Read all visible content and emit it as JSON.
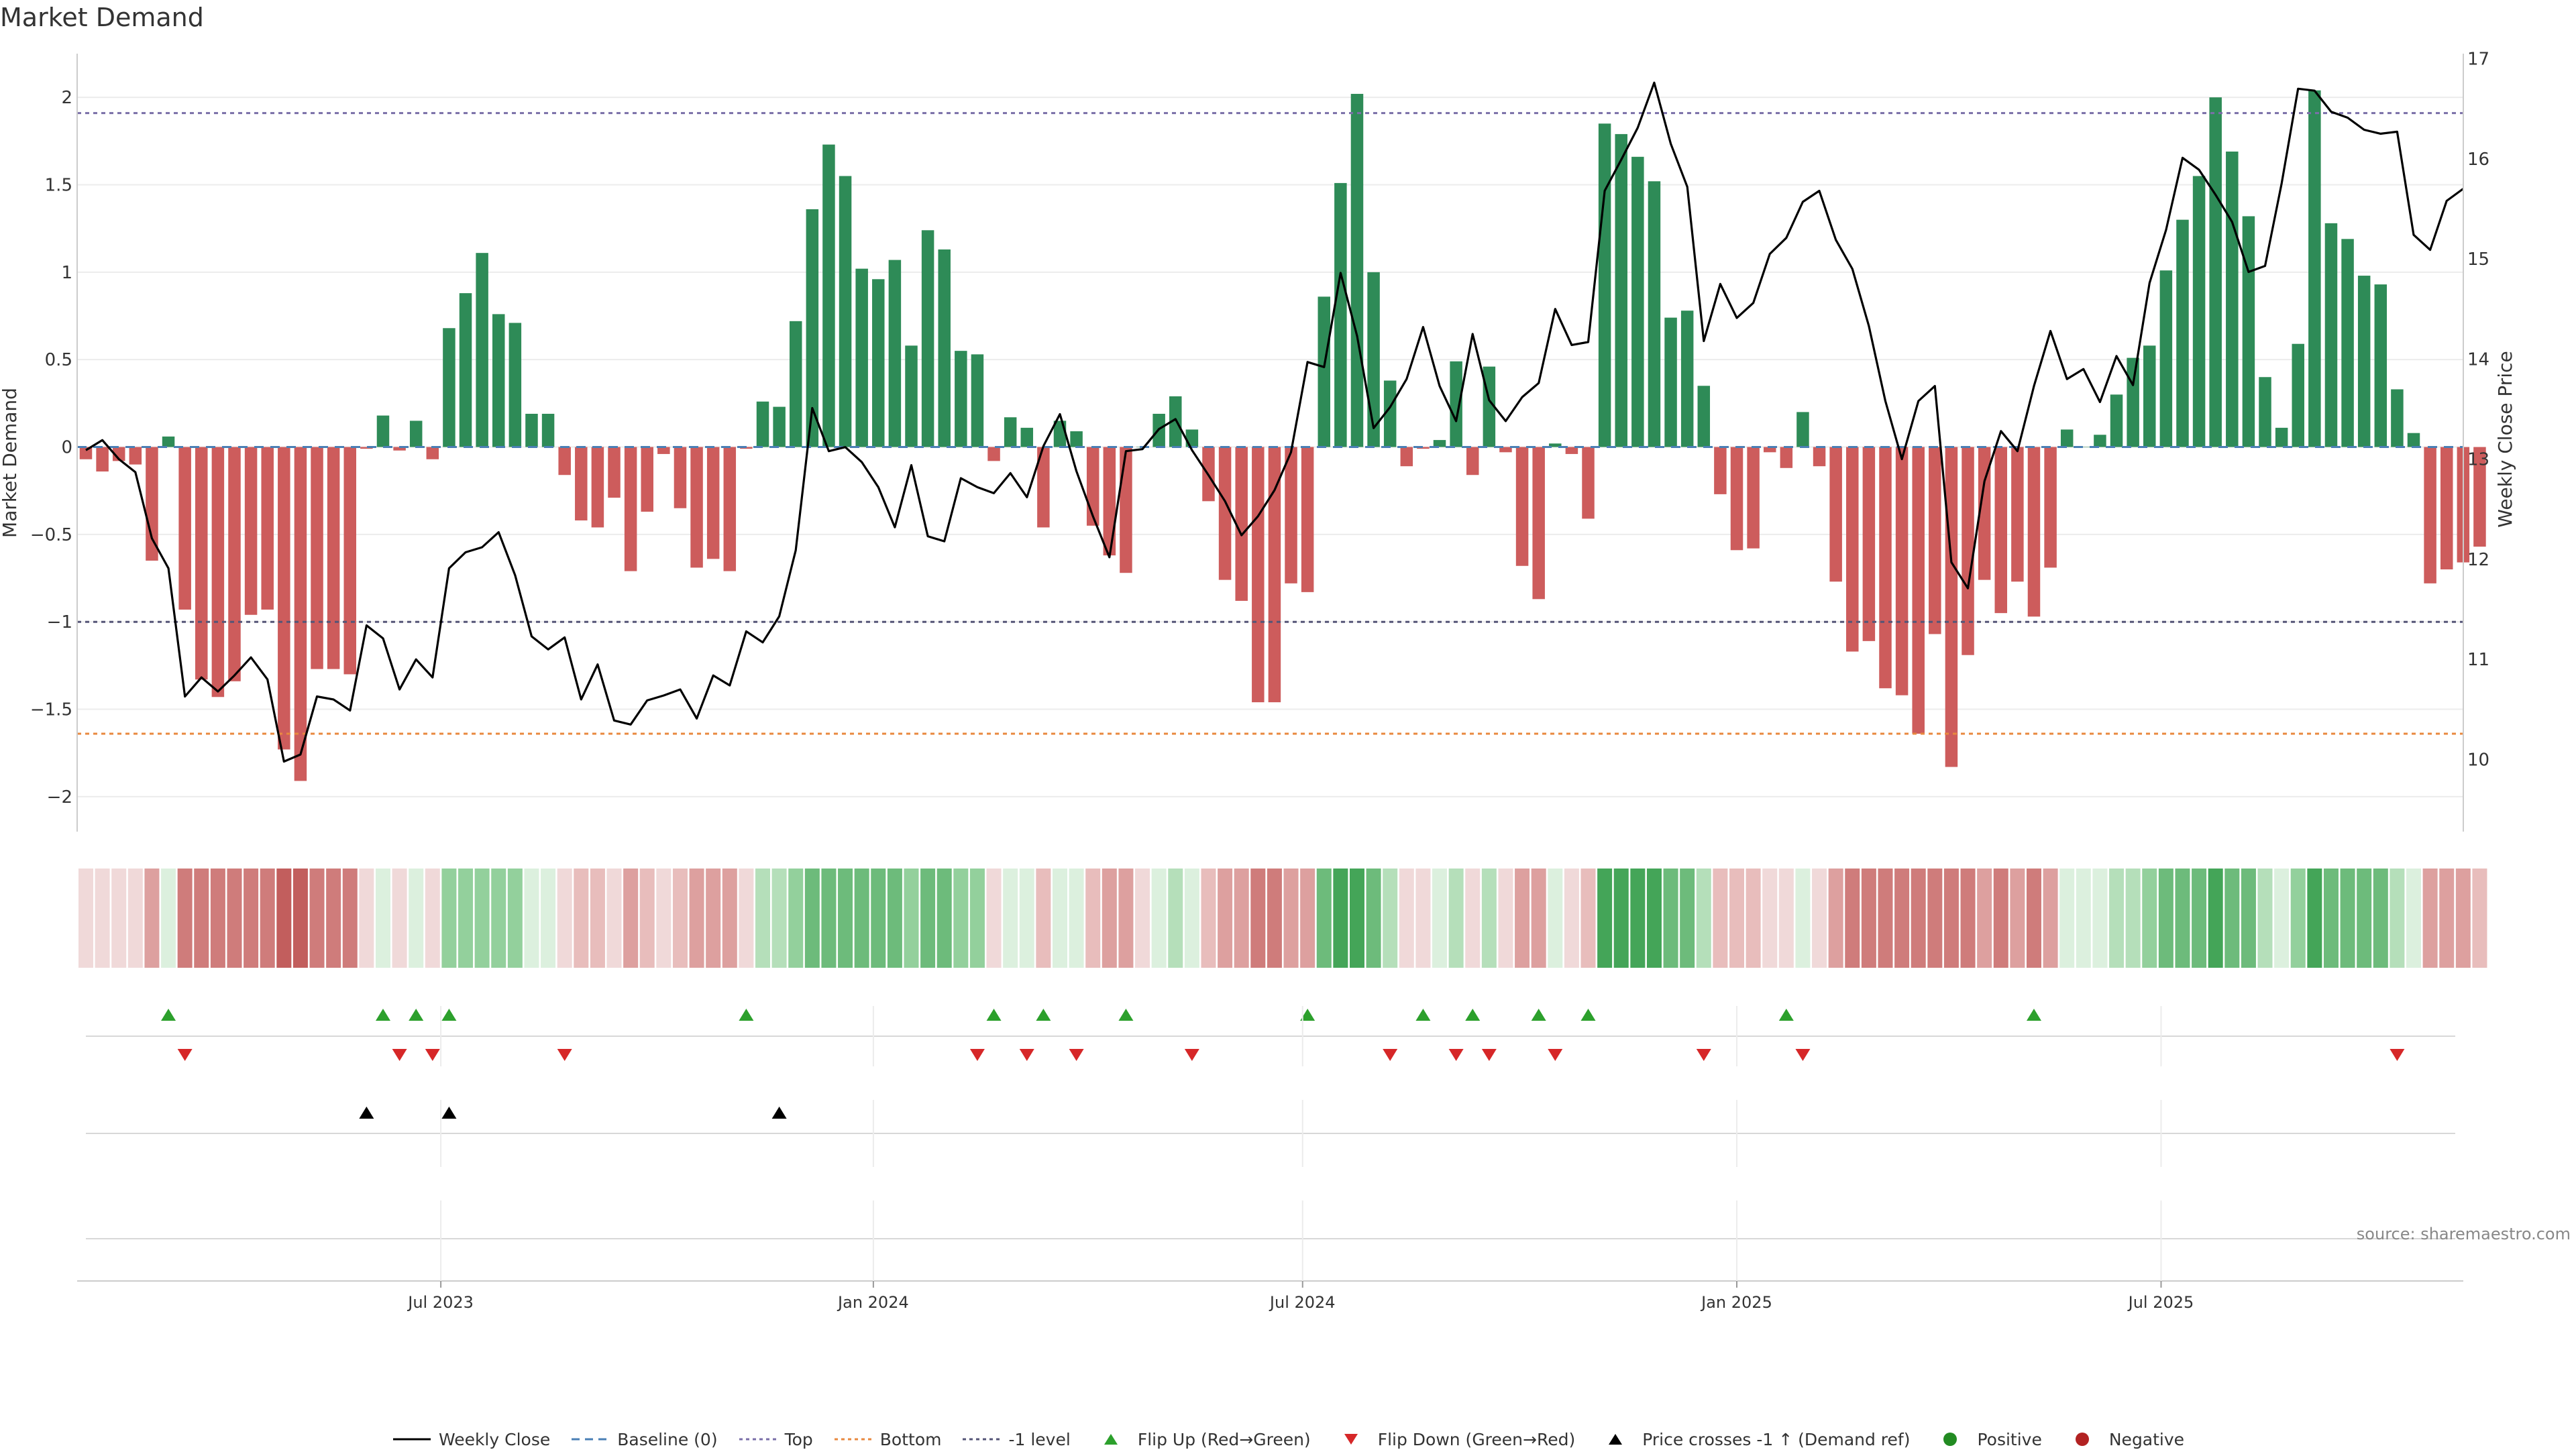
{
  "page": {
    "title": "Market Demand",
    "source": "source: sharemaestro.com"
  },
  "colors": {
    "positive": "#2e8b57",
    "negative": "#cd5c5c",
    "price": "#000000",
    "top": "#7a6fa8",
    "bottom": "#e8893f",
    "neg_level": "#555577",
    "flip_up": "#2ca02c",
    "flip_down": "#d62728",
    "cross": "#000000",
    "grid": "#ececec"
  },
  "chart_data": {
    "type": "bar",
    "title": "Market Demand",
    "ylabel": "Market Demand",
    "y2label": "Weekly Close Price",
    "ylim": [
      -2.2,
      2.25
    ],
    "y2lim": [
      9.28,
      17.05
    ],
    "yticks": [
      2,
      1.5,
      1,
      0.5,
      0,
      -0.5,
      -1,
      -1.5,
      -2
    ],
    "ytick_labels": [
      "2",
      "1.5",
      "1",
      "0.5",
      "0",
      "−0.5",
      "−1",
      "−1.5",
      "−2"
    ],
    "y2ticks": [
      17,
      16,
      15,
      14,
      13,
      12,
      11,
      10
    ],
    "ytick2_labels": [
      "17",
      "16",
      "15",
      "14",
      "13",
      "12",
      "11",
      "10"
    ],
    "x_ticks": [
      {
        "week": 21.5,
        "label": "Jul 2023"
      },
      {
        "week": 47.7,
        "label": "Jan 2024"
      },
      {
        "week": 73.7,
        "label": "Jul 2024"
      },
      {
        "week": 100.0,
        "label": "Jan 2025"
      },
      {
        "week": 125.7,
        "label": "Jul 2025"
      }
    ],
    "levels": {
      "top": 1.91,
      "bottom": -1.64,
      "neg_level": -1.0
    },
    "demand": [
      -0.07,
      -0.14,
      -0.08,
      -0.1,
      -0.65,
      0.06,
      -0.93,
      -1.33,
      -1.43,
      -1.34,
      -0.96,
      -0.93,
      -1.73,
      -1.91,
      -1.27,
      -1.27,
      -1.3,
      -0.01,
      0.18,
      -0.02,
      0.15,
      -0.07,
      0.68,
      0.88,
      1.11,
      0.76,
      0.71,
      0.19,
      0.19,
      -0.16,
      -0.42,
      -0.46,
      -0.29,
      -0.71,
      -0.37,
      -0.04,
      -0.35,
      -0.69,
      -0.64,
      -0.71,
      -0.01,
      0.26,
      0.23,
      0.72,
      1.36,
      1.73,
      1.55,
      1.02,
      0.96,
      1.07,
      0.58,
      1.24,
      1.13,
      0.55,
      0.53,
      -0.08,
      0.17,
      0.11,
      -0.46,
      0.15,
      0.09,
      -0.45,
      -0.62,
      -0.72,
      0.0,
      0.19,
      0.29,
      0.1,
      -0.31,
      -0.76,
      -0.88,
      -1.46,
      -1.46,
      -0.78,
      -0.83,
      0.86,
      1.51,
      2.02,
      1.0,
      0.38,
      -0.11,
      -0.01,
      0.04,
      0.49,
      -0.16,
      0.46,
      -0.03,
      -0.68,
      -0.87,
      0.02,
      -0.04,
      -0.41,
      1.85,
      1.79,
      1.66,
      1.52,
      0.74,
      0.78,
      0.35,
      -0.27,
      -0.59,
      -0.58,
      -0.03,
      -0.12,
      0.2,
      -0.11,
      -0.77,
      -1.17,
      -1.11,
      -1.38,
      -1.42,
      -1.64,
      -1.07,
      -1.83,
      -1.19,
      -0.76,
      -0.95,
      -0.77,
      -0.97,
      -0.69,
      0.1,
      0.0,
      0.07,
      0.3,
      0.51,
      0.58,
      1.01,
      1.3,
      1.55,
      2.0,
      1.69,
      1.32,
      0.4,
      0.11,
      0.59,
      2.04,
      1.28,
      1.19,
      0.98,
      0.93,
      0.33,
      0.08,
      -0.78,
      -0.7,
      -0.66,
      -0.57
    ],
    "weekly_close": [
      13.09,
      13.19,
      13.0,
      12.87,
      12.21,
      11.91,
      10.63,
      10.82,
      10.68,
      10.84,
      11.02,
      10.8,
      9.98,
      10.05,
      10.63,
      10.6,
      10.49,
      11.34,
      11.21,
      10.7,
      11.0,
      10.82,
      11.91,
      12.07,
      12.12,
      12.27,
      11.84,
      11.23,
      11.1,
      11.22,
      10.6,
      10.95,
      10.39,
      10.35,
      10.59,
      10.64,
      10.7,
      10.41,
      10.84,
      10.74,
      11.28,
      11.17,
      11.43,
      12.09,
      13.51,
      13.08,
      13.12,
      12.97,
      12.72,
      12.32,
      12.94,
      12.23,
      12.18,
      12.81,
      12.72,
      12.66,
      12.86,
      12.62,
      13.13,
      13.45,
      12.88,
      12.43,
      12.02,
      13.08,
      13.1,
      13.3,
      13.4,
      13.09,
      12.84,
      12.58,
      12.24,
      12.43,
      12.69,
      13.07,
      13.97,
      13.92,
      14.86,
      14.23,
      13.31,
      13.52,
      13.8,
      14.32,
      13.73,
      13.38,
      14.25,
      13.59,
      13.38,
      13.62,
      13.76,
      14.5,
      14.14,
      14.17,
      15.68,
      15.99,
      16.31,
      16.76,
      16.15,
      15.72,
      14.18,
      14.75,
      14.41,
      14.56,
      15.05,
      15.21,
      15.57,
      15.68,
      15.19,
      14.9,
      14.33,
      13.58,
      13.0,
      13.58,
      13.73,
      11.97,
      11.71,
      12.78,
      13.28,
      13.08,
      13.73,
      14.28,
      13.8,
      13.9,
      13.57,
      14.03,
      13.74,
      14.76,
      15.29,
      16.01,
      15.89,
      15.64,
      15.37,
      14.87,
      14.93,
      15.75,
      16.7,
      16.68,
      16.47,
      16.41,
      16.29,
      16.25,
      16.27,
      15.24,
      15.09,
      15.58,
      15.7
    ],
    "heat_palette": [
      "#f0d9d9",
      "#e8bdbc",
      "#dda09f",
      "#cf7c7b",
      "#c25e5d",
      "#dcf0de",
      "#b5dfba",
      "#93d09c",
      "#6dbb7b",
      "#44a558"
    ],
    "heat": [
      0,
      0,
      0,
      0,
      2,
      5,
      3,
      3,
      3,
      3,
      3,
      3,
      4,
      4,
      3,
      3,
      3,
      0,
      5,
      0,
      5,
      0,
      7,
      7,
      7,
      7,
      7,
      5,
      5,
      0,
      1,
      1,
      0,
      2,
      1,
      0,
      1,
      2,
      2,
      2,
      0,
      6,
      6,
      7,
      8,
      8,
      8,
      8,
      8,
      8,
      7,
      8,
      8,
      7,
      7,
      0,
      5,
      5,
      1,
      5,
      5,
      1,
      2,
      2,
      0,
      5,
      6,
      5,
      1,
      2,
      2,
      3,
      3,
      2,
      2,
      8,
      9,
      9,
      8,
      6,
      0,
      0,
      5,
      6,
      0,
      6,
      0,
      2,
      2,
      5,
      0,
      1,
      9,
      9,
      9,
      9,
      8,
      8,
      6,
      1,
      1,
      1,
      0,
      0,
      5,
      0,
      2,
      3,
      3,
      3,
      3,
      3,
      3,
      3,
      3,
      2,
      3,
      2,
      3,
      2,
      5,
      5,
      5,
      6,
      6,
      7,
      8,
      8,
      8,
      9,
      8,
      8,
      6,
      5,
      7,
      9,
      8,
      8,
      8,
      8,
      6,
      5,
      2,
      2,
      2,
      1
    ],
    "flip_up_weeks": [
      5,
      18,
      20,
      22,
      40,
      55,
      58,
      63,
      74,
      81,
      84,
      88,
      91,
      103,
      118
    ],
    "flip_down_weeks": [
      6,
      19,
      21,
      29,
      54,
      57,
      60,
      67,
      79,
      83,
      85,
      89,
      98,
      104,
      140
    ],
    "price_cross_weeks": [
      17,
      22,
      42
    ]
  },
  "legend": [
    {
      "label": "Weekly Close",
      "symbol": "line",
      "color": "#000000"
    },
    {
      "label": "Baseline (0)",
      "symbol": "dash",
      "color": "#4a7fb5"
    },
    {
      "label": "Top",
      "symbol": "dot",
      "color": "#7a6fa8"
    },
    {
      "label": "Bottom",
      "symbol": "dot",
      "color": "#e8893f"
    },
    {
      "label": "-1 level",
      "symbol": "dot",
      "color": "#555577"
    },
    {
      "label": "Flip Up (Red→Green)",
      "symbol": "tri-up",
      "color": "#2ca02c"
    },
    {
      "label": "Flip Down (Green→Red)",
      "symbol": "tri-down",
      "color": "#d62728"
    },
    {
      "label": "Price crosses -1 ↑ (Demand ref)",
      "symbol": "tri-up",
      "color": "#000000"
    },
    {
      "label": "Positive",
      "symbol": "circle",
      "color": "#228b22"
    },
    {
      "label": "Negative",
      "symbol": "circle",
      "color": "#b22222"
    }
  ]
}
